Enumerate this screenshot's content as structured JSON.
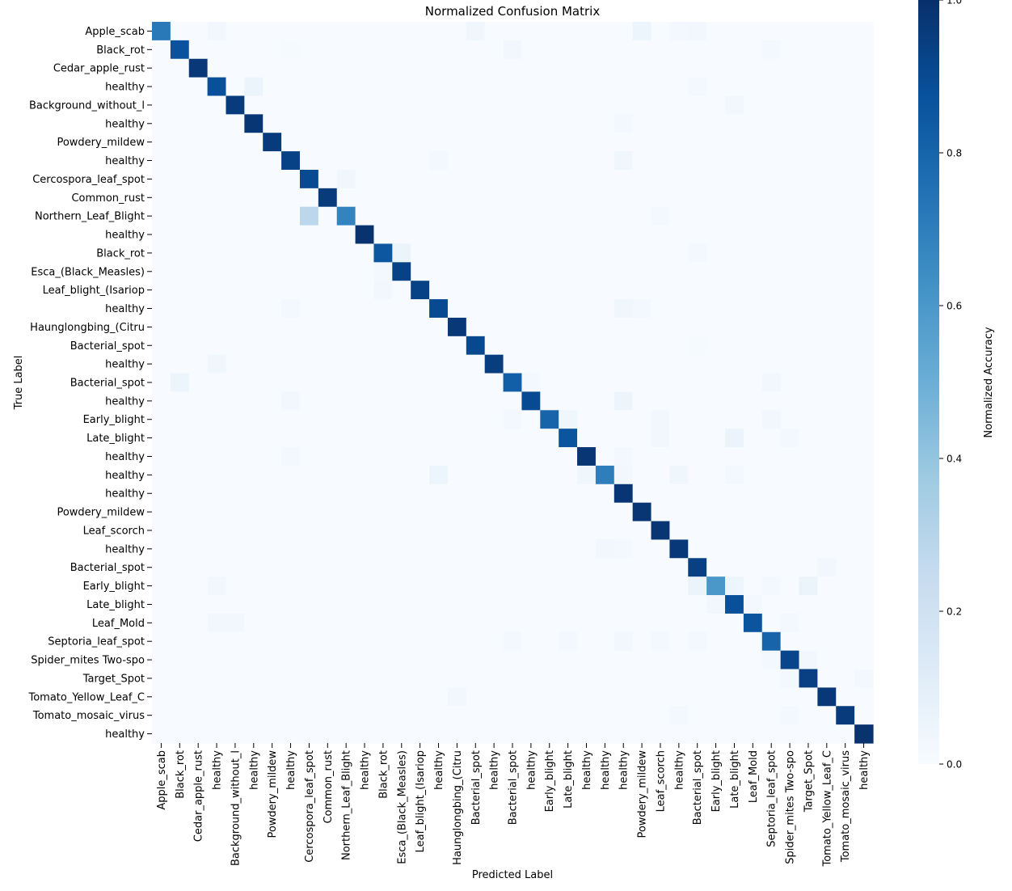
{
  "chart_data": {
    "type": "heatmap",
    "title": "Normalized Confusion Matrix",
    "xlabel": "Predicted Label",
    "ylabel": "True Label",
    "colorbar_label": "Normalized Accuracy",
    "colormap": [
      "#f7fbff",
      "#deebf7",
      "#c6dbef",
      "#9ecae1",
      "#6baed6",
      "#4292c6",
      "#2171b5",
      "#08519c",
      "#08306b"
    ],
    "value_range": [
      0,
      1
    ],
    "colorbar_ticks": [
      "0.0",
      "0.2",
      "0.4",
      "0.6",
      "0.8",
      "1.0"
    ],
    "colorbar_tick_values": [
      0,
      0.2,
      0.4,
      0.6,
      0.8,
      1.0
    ],
    "labels": [
      "Apple_scab",
      "Black_rot",
      "Cedar_apple_rust",
      "healthy",
      "Background_without_l",
      "healthy",
      "Powdery_mildew",
      "healthy",
      "Cercospora_leaf_spot",
      "Common_rust",
      "Northern_Leaf_Blight",
      "healthy",
      "Black_rot",
      "Esca_(Black_Measles)",
      "Leaf_blight_(Isariop",
      "healthy",
      "Haunglongbing_(Citru",
      "Bacterial_spot",
      "healthy",
      "Bacterial_spot",
      "healthy",
      "Early_blight",
      "Late_blight",
      "healthy",
      "healthy",
      "healthy",
      "Powdery_mildew",
      "Leaf_scorch",
      "healthy",
      "Bacterial_spot",
      "Early_blight",
      "Late_blight",
      "Leaf_Mold",
      "Septoria_leaf_spot",
      "Spider_mites Two-spo",
      "Target_Spot",
      "Tomato_Yellow_Leaf_C",
      "Tomato_mosaic_virus",
      "healthy"
    ],
    "diagonal": [
      0.72,
      0.87,
      0.97,
      0.88,
      0.96,
      0.98,
      0.96,
      0.93,
      0.9,
      0.96,
      0.68,
      0.99,
      0.85,
      0.93,
      0.93,
      0.9,
      0.97,
      0.91,
      0.95,
      0.82,
      0.9,
      0.8,
      0.86,
      0.98,
      0.7,
      0.98,
      0.98,
      0.98,
      0.97,
      0.94,
      0.6,
      0.88,
      0.86,
      0.8,
      0.92,
      0.94,
      0.97,
      0.96,
      0.99
    ],
    "off_diagonal": [
      [
        0,
        3,
        0.03
      ],
      [
        0,
        17,
        0.04
      ],
      [
        0,
        26,
        0.05
      ],
      [
        0,
        28,
        0.02
      ],
      [
        0,
        29,
        0.03
      ],
      [
        1,
        7,
        0.01
      ],
      [
        1,
        19,
        0.03
      ],
      [
        1,
        33,
        0.02
      ],
      [
        3,
        5,
        0.06
      ],
      [
        3,
        29,
        0.02
      ],
      [
        4,
        31,
        0.03
      ],
      [
        5,
        25,
        0.02
      ],
      [
        7,
        25,
        0.04
      ],
      [
        7,
        15,
        0.02
      ],
      [
        8,
        10,
        0.04
      ],
      [
        10,
        8,
        0.28
      ],
      [
        10,
        27,
        0.02
      ],
      [
        12,
        13,
        0.06
      ],
      [
        12,
        29,
        0.02
      ],
      [
        13,
        12,
        0.02
      ],
      [
        14,
        12,
        0.03
      ],
      [
        15,
        25,
        0.04
      ],
      [
        15,
        7,
        0.02
      ],
      [
        15,
        26,
        0.02
      ],
      [
        17,
        29,
        0.01
      ],
      [
        18,
        3,
        0.04
      ],
      [
        19,
        1,
        0.05
      ],
      [
        19,
        33,
        0.03
      ],
      [
        19,
        20,
        0.02
      ],
      [
        20,
        7,
        0.03
      ],
      [
        20,
        25,
        0.05
      ],
      [
        21,
        22,
        0.04
      ],
      [
        21,
        27,
        0.03
      ],
      [
        21,
        33,
        0.03
      ],
      [
        21,
        19,
        0.02
      ],
      [
        22,
        31,
        0.06
      ],
      [
        22,
        27,
        0.03
      ],
      [
        22,
        34,
        0.02
      ],
      [
        23,
        7,
        0.02
      ],
      [
        23,
        25,
        0.02
      ],
      [
        24,
        15,
        0.05
      ],
      [
        24,
        23,
        0.04
      ],
      [
        24,
        28,
        0.04
      ],
      [
        24,
        25,
        0.03
      ],
      [
        24,
        31,
        0.02
      ],
      [
        28,
        24,
        0.03
      ],
      [
        28,
        25,
        0.02
      ],
      [
        29,
        36,
        0.03
      ],
      [
        30,
        29,
        0.06
      ],
      [
        30,
        31,
        0.05
      ],
      [
        30,
        35,
        0.06
      ],
      [
        30,
        3,
        0.03
      ],
      [
        30,
        33,
        0.02
      ],
      [
        31,
        30,
        0.03
      ],
      [
        31,
        32,
        0.02
      ],
      [
        32,
        3,
        0.03
      ],
      [
        32,
        4,
        0.03
      ],
      [
        32,
        34,
        0.02
      ],
      [
        33,
        25,
        0.03
      ],
      [
        33,
        27,
        0.02
      ],
      [
        33,
        29,
        0.02
      ],
      [
        33,
        19,
        0.02
      ],
      [
        33,
        22,
        0.02
      ],
      [
        34,
        35,
        0.03
      ],
      [
        34,
        33,
        0.02
      ],
      [
        35,
        38,
        0.02
      ],
      [
        35,
        34,
        0.02
      ],
      [
        36,
        16,
        0.03
      ],
      [
        37,
        28,
        0.02
      ],
      [
        37,
        34,
        0.02
      ]
    ],
    "grid": false,
    "legend": "colorbar-right"
  }
}
